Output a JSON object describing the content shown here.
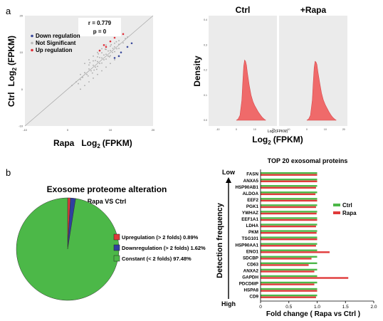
{
  "panel_labels": {
    "a": "a",
    "b": "b"
  },
  "chart_data": [
    {
      "type": "scatter",
      "panel": "a",
      "xlabel_main": "Rapa",
      "xlabel_log": "Log",
      "xlabel_sub": "2",
      "xlabel_unit": "(FPKM)",
      "ylabel_main": "Ctrl",
      "ylabel_log": "Log",
      "ylabel_sub": "2",
      "ylabel_unit": "(FPKM)",
      "xlim": [
        -10,
        20
      ],
      "ylim": [
        -10,
        20
      ],
      "x_ticks": [
        "-10",
        "0",
        "10",
        "20"
      ],
      "y_ticks": [
        "-10",
        "0",
        "10",
        "20"
      ],
      "stats": {
        "r": "r = 0.779",
        "p": "p = 0"
      },
      "legend": [
        {
          "label": "Down regulation",
          "color": "#3b4a9c"
        },
        {
          "label": "Not Significant",
          "color": "#bbbbbb"
        },
        {
          "label": "Up regulation",
          "color": "#e0303a"
        }
      ],
      "colors": {
        "down": "#3b4a9c",
        "ns": "#aaaaaa",
        "up": "#e0303a",
        "bg": "#ebebeb"
      },
      "points_ns": [
        [
          1,
          1
        ],
        [
          2,
          2
        ],
        [
          3,
          2.6
        ],
        [
          3.5,
          3.2
        ],
        [
          4,
          4.5
        ],
        [
          4.5,
          4
        ],
        [
          5,
          5.5
        ],
        [
          5.5,
          5
        ],
        [
          6,
          6.5
        ],
        [
          6.5,
          6
        ],
        [
          7,
          7.5
        ],
        [
          7.5,
          7
        ],
        [
          8,
          8.5
        ],
        [
          8.5,
          8
        ],
        [
          9,
          9.5
        ],
        [
          9.5,
          9
        ],
        [
          10,
          10.5
        ],
        [
          10.5,
          10
        ],
        [
          11,
          11.5
        ],
        [
          11.5,
          11
        ],
        [
          12,
          12.2
        ],
        [
          4,
          7
        ],
        [
          5,
          8
        ],
        [
          6,
          9
        ],
        [
          7,
          10
        ],
        [
          8,
          11
        ],
        [
          9,
          12
        ],
        [
          6,
          3
        ],
        [
          7,
          4
        ],
        [
          8,
          5
        ],
        [
          9,
          6
        ],
        [
          10,
          7
        ],
        [
          11,
          8
        ],
        [
          5,
          2
        ],
        [
          3,
          0
        ],
        [
          4,
          1
        ],
        [
          5,
          6.6
        ],
        [
          6,
          7.7
        ],
        [
          7,
          8.8
        ],
        [
          8,
          9.9
        ],
        [
          9,
          10.8
        ],
        [
          10,
          11.7
        ],
        [
          11,
          12.5
        ],
        [
          12,
          13.2
        ],
        [
          7,
          6.2
        ],
        [
          8,
          7.1
        ],
        [
          9,
          8.2
        ],
        [
          10,
          9.1
        ],
        [
          11,
          10.2
        ],
        [
          12,
          11.1
        ],
        [
          6.5,
          7.8
        ],
        [
          7.5,
          8.6
        ],
        [
          8.5,
          9.3
        ],
        [
          9.5,
          10.4
        ],
        [
          7.2,
          9.6
        ],
        [
          8.8,
          10.9
        ],
        [
          10.2,
          12.1
        ],
        [
          5.8,
          4.4
        ],
        [
          6.2,
          5.2
        ],
        [
          4.8,
          3.6
        ],
        [
          13,
          12.6
        ],
        [
          13.5,
          13.8
        ],
        [
          14,
          14.2
        ],
        [
          9.8,
          8.8
        ],
        [
          10.6,
          11.1
        ],
        [
          11.4,
          12.9
        ],
        [
          3,
          4
        ],
        [
          2.5,
          1.5
        ],
        [
          6.8,
          5.4
        ],
        [
          5.2,
          7.2
        ]
      ],
      "points_up": [
        [
          8.5,
          12
        ],
        [
          10,
          13
        ],
        [
          9,
          11.5
        ],
        [
          11,
          14
        ],
        [
          12,
          15.5
        ],
        [
          7.5,
          10.5
        ],
        [
          13,
          15
        ]
      ],
      "points_down": [
        [
          12.5,
          10
        ],
        [
          14,
          11.5
        ],
        [
          11,
          8.5
        ],
        [
          15,
          12.5
        ],
        [
          12,
          9
        ]
      ]
    },
    {
      "type": "area",
      "panel": "a",
      "ylabel": "Density",
      "xlabel_small": "Log2(FPKM)",
      "xlabel_log": "Log",
      "xlabel_sub": "2",
      "xlabel_unit": "(FPKM)",
      "facets": [
        "Ctrl",
        "+Rapa"
      ],
      "xlim": [
        -15,
        22
      ],
      "ylim": [
        0,
        0.4
      ],
      "x_ticks": [
        "-10",
        "0",
        "10",
        "20"
      ],
      "y_ticks": [
        "0.0",
        "0.1",
        "0.2",
        "0.3",
        "0.4"
      ],
      "colors": {
        "fill": "#ef6a6a",
        "stroke": "#d9474a",
        "bg": "#ebebeb",
        "header": "#cfcfcf"
      },
      "density_x": [
        0,
        1,
        2,
        3,
        3.5,
        4,
        4.5,
        5,
        5.5,
        6,
        7,
        8,
        9,
        10,
        11,
        12,
        13,
        14,
        15,
        16
      ],
      "density_ctrl": [
        0,
        0.005,
        0.02,
        0.08,
        0.15,
        0.215,
        0.24,
        0.235,
        0.22,
        0.19,
        0.14,
        0.1,
        0.075,
        0.058,
        0.045,
        0.032,
        0.022,
        0.012,
        0.005,
        0
      ],
      "density_rapa": [
        0,
        0.005,
        0.02,
        0.08,
        0.15,
        0.21,
        0.235,
        0.232,
        0.222,
        0.195,
        0.15,
        0.108,
        0.08,
        0.062,
        0.048,
        0.034,
        0.022,
        0.012,
        0.005,
        0
      ]
    },
    {
      "type": "pie",
      "panel": "b",
      "title": "Exosome proteome alteration",
      "subtitle": "Rapa VS Ctrl",
      "slices": [
        {
          "label": "Upregulation (> 2 folds) 0.89%",
          "value": 0.89,
          "color": "#e03a3a"
        },
        {
          "label": "Downregulation (> 2 folds) 1.62%",
          "value": 1.62,
          "color": "#2f3fa0"
        },
        {
          "label": "Constant (< 2 folds) 97.48%",
          "value": 97.48,
          "color": "#4cb848"
        }
      ]
    },
    {
      "type": "bar",
      "panel": "b",
      "title": "TOP 20 exosomal proteins",
      "xlabel": "Fold change ( Rapa vs Ctrl )",
      "ylabel": "Detection frequency",
      "low_label": "Low",
      "high_label": "High",
      "xlim": [
        0,
        2
      ],
      "x_ticks": [
        "0",
        "0.5",
        "1.0",
        "1.5",
        "2.0"
      ],
      "categories": [
        "FASN",
        "ANXA5",
        "HSP90AB1",
        "ALDOA",
        "EEF2",
        "PGK1",
        "YWHAZ",
        "EEF1A1",
        "LDHA",
        "PKM",
        "TSG101",
        "HSP90AA1",
        "ENO1",
        "SDCBP",
        "CD63",
        "ANXA2",
        "GAPDH",
        "PDCD6IP",
        "HSPA8",
        "CD9"
      ],
      "series": [
        {
          "name": "Ctrl",
          "color": "#4cb848",
          "values": [
            1,
            1,
            1,
            1,
            1,
            1,
            1,
            1,
            1,
            1,
            1,
            1,
            1,
            1,
            1,
            1,
            1,
            1,
            1,
            1
          ]
        },
        {
          "name": "Rapa",
          "color": "#e03a3a",
          "values": [
            1.0,
            1.0,
            0.98,
            0.97,
            1.0,
            0.98,
            0.99,
            1.0,
            0.98,
            0.99,
            1.0,
            0.98,
            1.22,
            0.9,
            0.85,
            0.95,
            1.55,
            0.95,
            1.0,
            0.98
          ]
        }
      ]
    }
  ]
}
